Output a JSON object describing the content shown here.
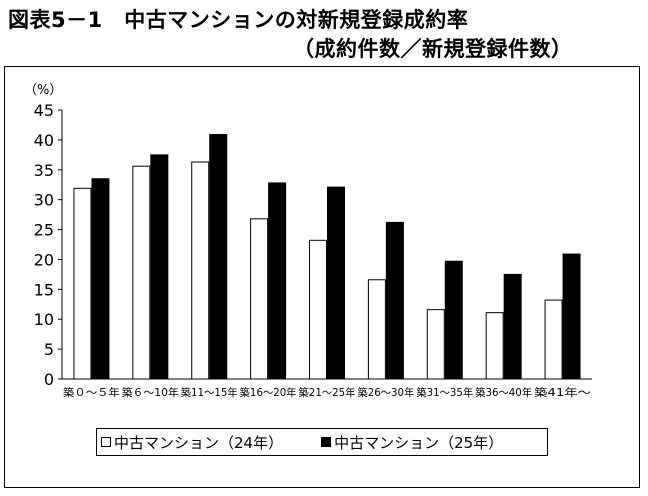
{
  "figure": {
    "title": "図表5－1　中古マンションの対新規登録成約率",
    "subtitle": "（成約件数／新規登録件数）"
  },
  "chart_data": {
    "type": "bar",
    "ylabel": "（%）",
    "ylim": [
      0,
      45
    ],
    "yticks": [
      0,
      5,
      10,
      15,
      20,
      25,
      30,
      35,
      40,
      45
    ],
    "grid": false,
    "legend_position": "bottom",
    "categories": [
      "築０～５年",
      "築６～10年",
      "築11～15年",
      "築16～20年",
      "築21～25年",
      "築26～30年",
      "築31～35年",
      "築36～40年",
      "築41年～"
    ],
    "series": [
      {
        "name": "中古マンション（24年）",
        "color": "#ffffff",
        "values": [
          31.9,
          35.6,
          36.3,
          26.8,
          23.2,
          16.6,
          11.6,
          11.1,
          13.2
        ]
      },
      {
        "name": "中古マンション（25年）",
        "color": "#000000",
        "values": [
          33.5,
          37.5,
          40.9,
          32.8,
          32.1,
          26.2,
          19.7,
          17.5,
          20.9
        ]
      }
    ]
  }
}
